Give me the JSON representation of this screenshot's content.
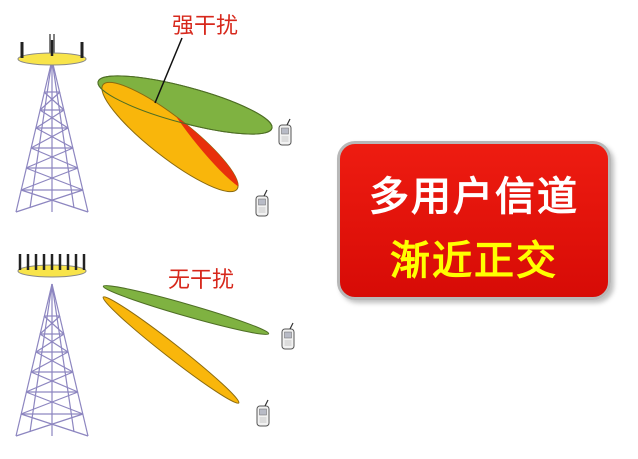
{
  "strong_interference_label": "强干扰",
  "no_interference_label": "无干扰",
  "callout": {
    "line1": "多用户信道",
    "line2": "渐近正交"
  },
  "colors": {
    "beam_green": "#7fb241",
    "beam_yellow": "#f9b60b",
    "beam_red_overlap": "#e8300c",
    "label_red": "#d7281c",
    "callout_red": "#e31610",
    "callout_text_white": "#ffffff",
    "callout_text_yellow": "#ffff00",
    "antenna_disc_yellow": "#f8e44a",
    "tower_lavender": "#8d86c0"
  },
  "icons": [
    "cell-tower-icon",
    "mobile-phone-icon"
  ]
}
